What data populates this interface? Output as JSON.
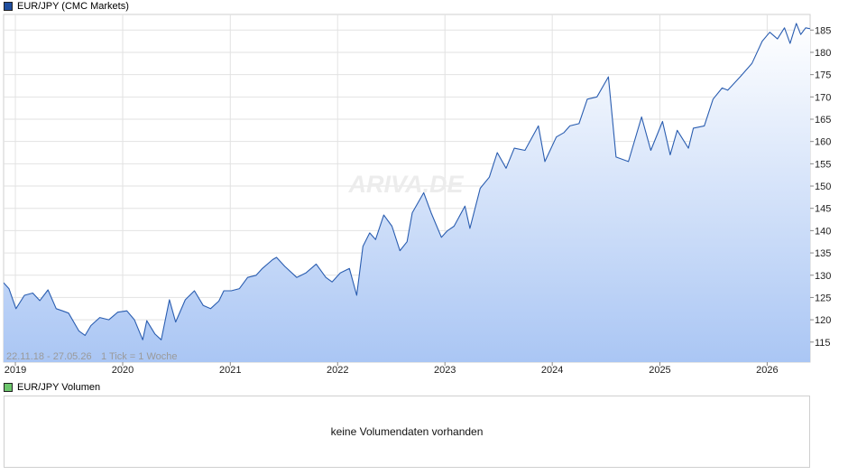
{
  "legend": {
    "main_label": "EUR/JPY (CMC Markets)",
    "main_color": "#1f4e9e",
    "volume_label": "EUR/JPY Volumen",
    "volume_color": "#6cc66c"
  },
  "range_label": "22.11.18 - 27.05.26",
  "tick_label": "1 Tick = 1 Woche",
  "watermark": "ARIVA.DE",
  "volume": {
    "empty_message": "keine Volumendaten vorhanden"
  },
  "chart_data": {
    "type": "area",
    "title": "EUR/JPY (CMC Markets)",
    "xlabel": "",
    "ylabel": "",
    "x_ticks": [
      "2019",
      "2020",
      "2021",
      "2022",
      "2023",
      "2024",
      "2025",
      "2026"
    ],
    "y_ticks": [
      115,
      120,
      125,
      130,
      135,
      140,
      145,
      150,
      155,
      160,
      165,
      170,
      175,
      180,
      185
    ],
    "xlim": [
      "2018-11-22",
      "2026-05-27"
    ],
    "ylim": [
      110.5,
      188.5
    ],
    "grid": true,
    "line_color": "#2a5db0",
    "fill_top_color": "#ffffff",
    "fill_bottom_color": "#aac6f4",
    "series": [
      {
        "name": "EUR/JPY (CMC Markets)",
        "points": [
          [
            "2018-11-22",
            128.3
          ],
          [
            "2018-12-10",
            127.0
          ],
          [
            "2019-01-03",
            122.5
          ],
          [
            "2019-02-01",
            125.5
          ],
          [
            "2019-03-01",
            126.0
          ],
          [
            "2019-03-25",
            124.3
          ],
          [
            "2019-04-22",
            126.7
          ],
          [
            "2019-05-20",
            122.5
          ],
          [
            "2019-06-10",
            122.0
          ],
          [
            "2019-07-01",
            121.5
          ],
          [
            "2019-08-05",
            117.5
          ],
          [
            "2019-08-26",
            116.5
          ],
          [
            "2019-09-15",
            118.7
          ],
          [
            "2019-10-15",
            120.5
          ],
          [
            "2019-11-15",
            120.0
          ],
          [
            "2019-12-15",
            121.7
          ],
          [
            "2020-01-15",
            122.0
          ],
          [
            "2020-02-10",
            120.0
          ],
          [
            "2020-03-09",
            115.5
          ],
          [
            "2020-03-23",
            119.8
          ],
          [
            "2020-04-20",
            116.8
          ],
          [
            "2020-05-11",
            115.5
          ],
          [
            "2020-06-08",
            124.5
          ],
          [
            "2020-06-29",
            119.5
          ],
          [
            "2020-08-01",
            124.5
          ],
          [
            "2020-09-01",
            126.5
          ],
          [
            "2020-10-01",
            123.2
          ],
          [
            "2020-10-26",
            122.5
          ],
          [
            "2020-11-23",
            124.2
          ],
          [
            "2020-12-10",
            126.5
          ],
          [
            "2021-01-04",
            126.5
          ],
          [
            "2021-02-01",
            127.0
          ],
          [
            "2021-03-01",
            129.5
          ],
          [
            "2021-03-30",
            130.0
          ],
          [
            "2021-04-20",
            131.5
          ],
          [
            "2021-05-25",
            133.5
          ],
          [
            "2021-06-07",
            134.0
          ],
          [
            "2021-07-05",
            132.0
          ],
          [
            "2021-08-15",
            129.5
          ],
          [
            "2021-09-15",
            130.5
          ],
          [
            "2021-10-20",
            132.5
          ],
          [
            "2021-11-22",
            129.5
          ],
          [
            "2021-12-13",
            128.5
          ],
          [
            "2022-01-10",
            130.5
          ],
          [
            "2022-02-10",
            131.5
          ],
          [
            "2022-03-07",
            125.5
          ],
          [
            "2022-03-28",
            136.5
          ],
          [
            "2022-04-20",
            139.5
          ],
          [
            "2022-05-10",
            138.0
          ],
          [
            "2022-06-07",
            143.5
          ],
          [
            "2022-07-05",
            141.0
          ],
          [
            "2022-08-01",
            135.5
          ],
          [
            "2022-08-25",
            137.5
          ],
          [
            "2022-09-12",
            144.0
          ],
          [
            "2022-10-21",
            148.5
          ],
          [
            "2022-11-15",
            144.0
          ],
          [
            "2022-12-20",
            138.5
          ],
          [
            "2023-01-10",
            140.0
          ],
          [
            "2023-02-01",
            141.0
          ],
          [
            "2023-03-10",
            145.5
          ],
          [
            "2023-03-27",
            140.5
          ],
          [
            "2023-05-01",
            149.5
          ],
          [
            "2023-06-01",
            152.0
          ],
          [
            "2023-06-28",
            157.5
          ],
          [
            "2023-07-28",
            154.0
          ],
          [
            "2023-08-25",
            158.5
          ],
          [
            "2023-09-30",
            158.0
          ],
          [
            "2023-11-15",
            163.5
          ],
          [
            "2023-12-07",
            155.5
          ],
          [
            "2024-01-15",
            161.0
          ],
          [
            "2024-02-10",
            162.0
          ],
          [
            "2024-03-01",
            163.5
          ],
          [
            "2024-04-01",
            164.0
          ],
          [
            "2024-04-29",
            169.5
          ],
          [
            "2024-06-01",
            170.0
          ],
          [
            "2024-07-10",
            174.5
          ],
          [
            "2024-08-05",
            156.5
          ],
          [
            "2024-09-16",
            155.5
          ],
          [
            "2024-10-31",
            165.5
          ],
          [
            "2024-12-01",
            158.0
          ],
          [
            "2025-01-10",
            164.5
          ],
          [
            "2025-02-05",
            157.0
          ],
          [
            "2025-03-01",
            162.5
          ],
          [
            "2025-04-08",
            158.5
          ],
          [
            "2025-04-25",
            163.0
          ],
          [
            "2025-06-01",
            163.5
          ],
          [
            "2025-07-01",
            169.5
          ],
          [
            "2025-08-01",
            172.0
          ],
          [
            "2025-08-20",
            171.5
          ],
          [
            "2025-10-01",
            174.5
          ],
          [
            "2025-11-10",
            177.5
          ],
          [
            "2025-12-15",
            182.5
          ],
          [
            "2026-01-10",
            184.5
          ],
          [
            "2026-02-05",
            183.0
          ],
          [
            "2026-03-01",
            185.5
          ],
          [
            "2026-03-20",
            182.0
          ],
          [
            "2026-04-10",
            186.5
          ],
          [
            "2026-04-25",
            184.0
          ],
          [
            "2026-05-12",
            185.5
          ],
          [
            "2026-05-27",
            185.3
          ]
        ]
      }
    ]
  }
}
